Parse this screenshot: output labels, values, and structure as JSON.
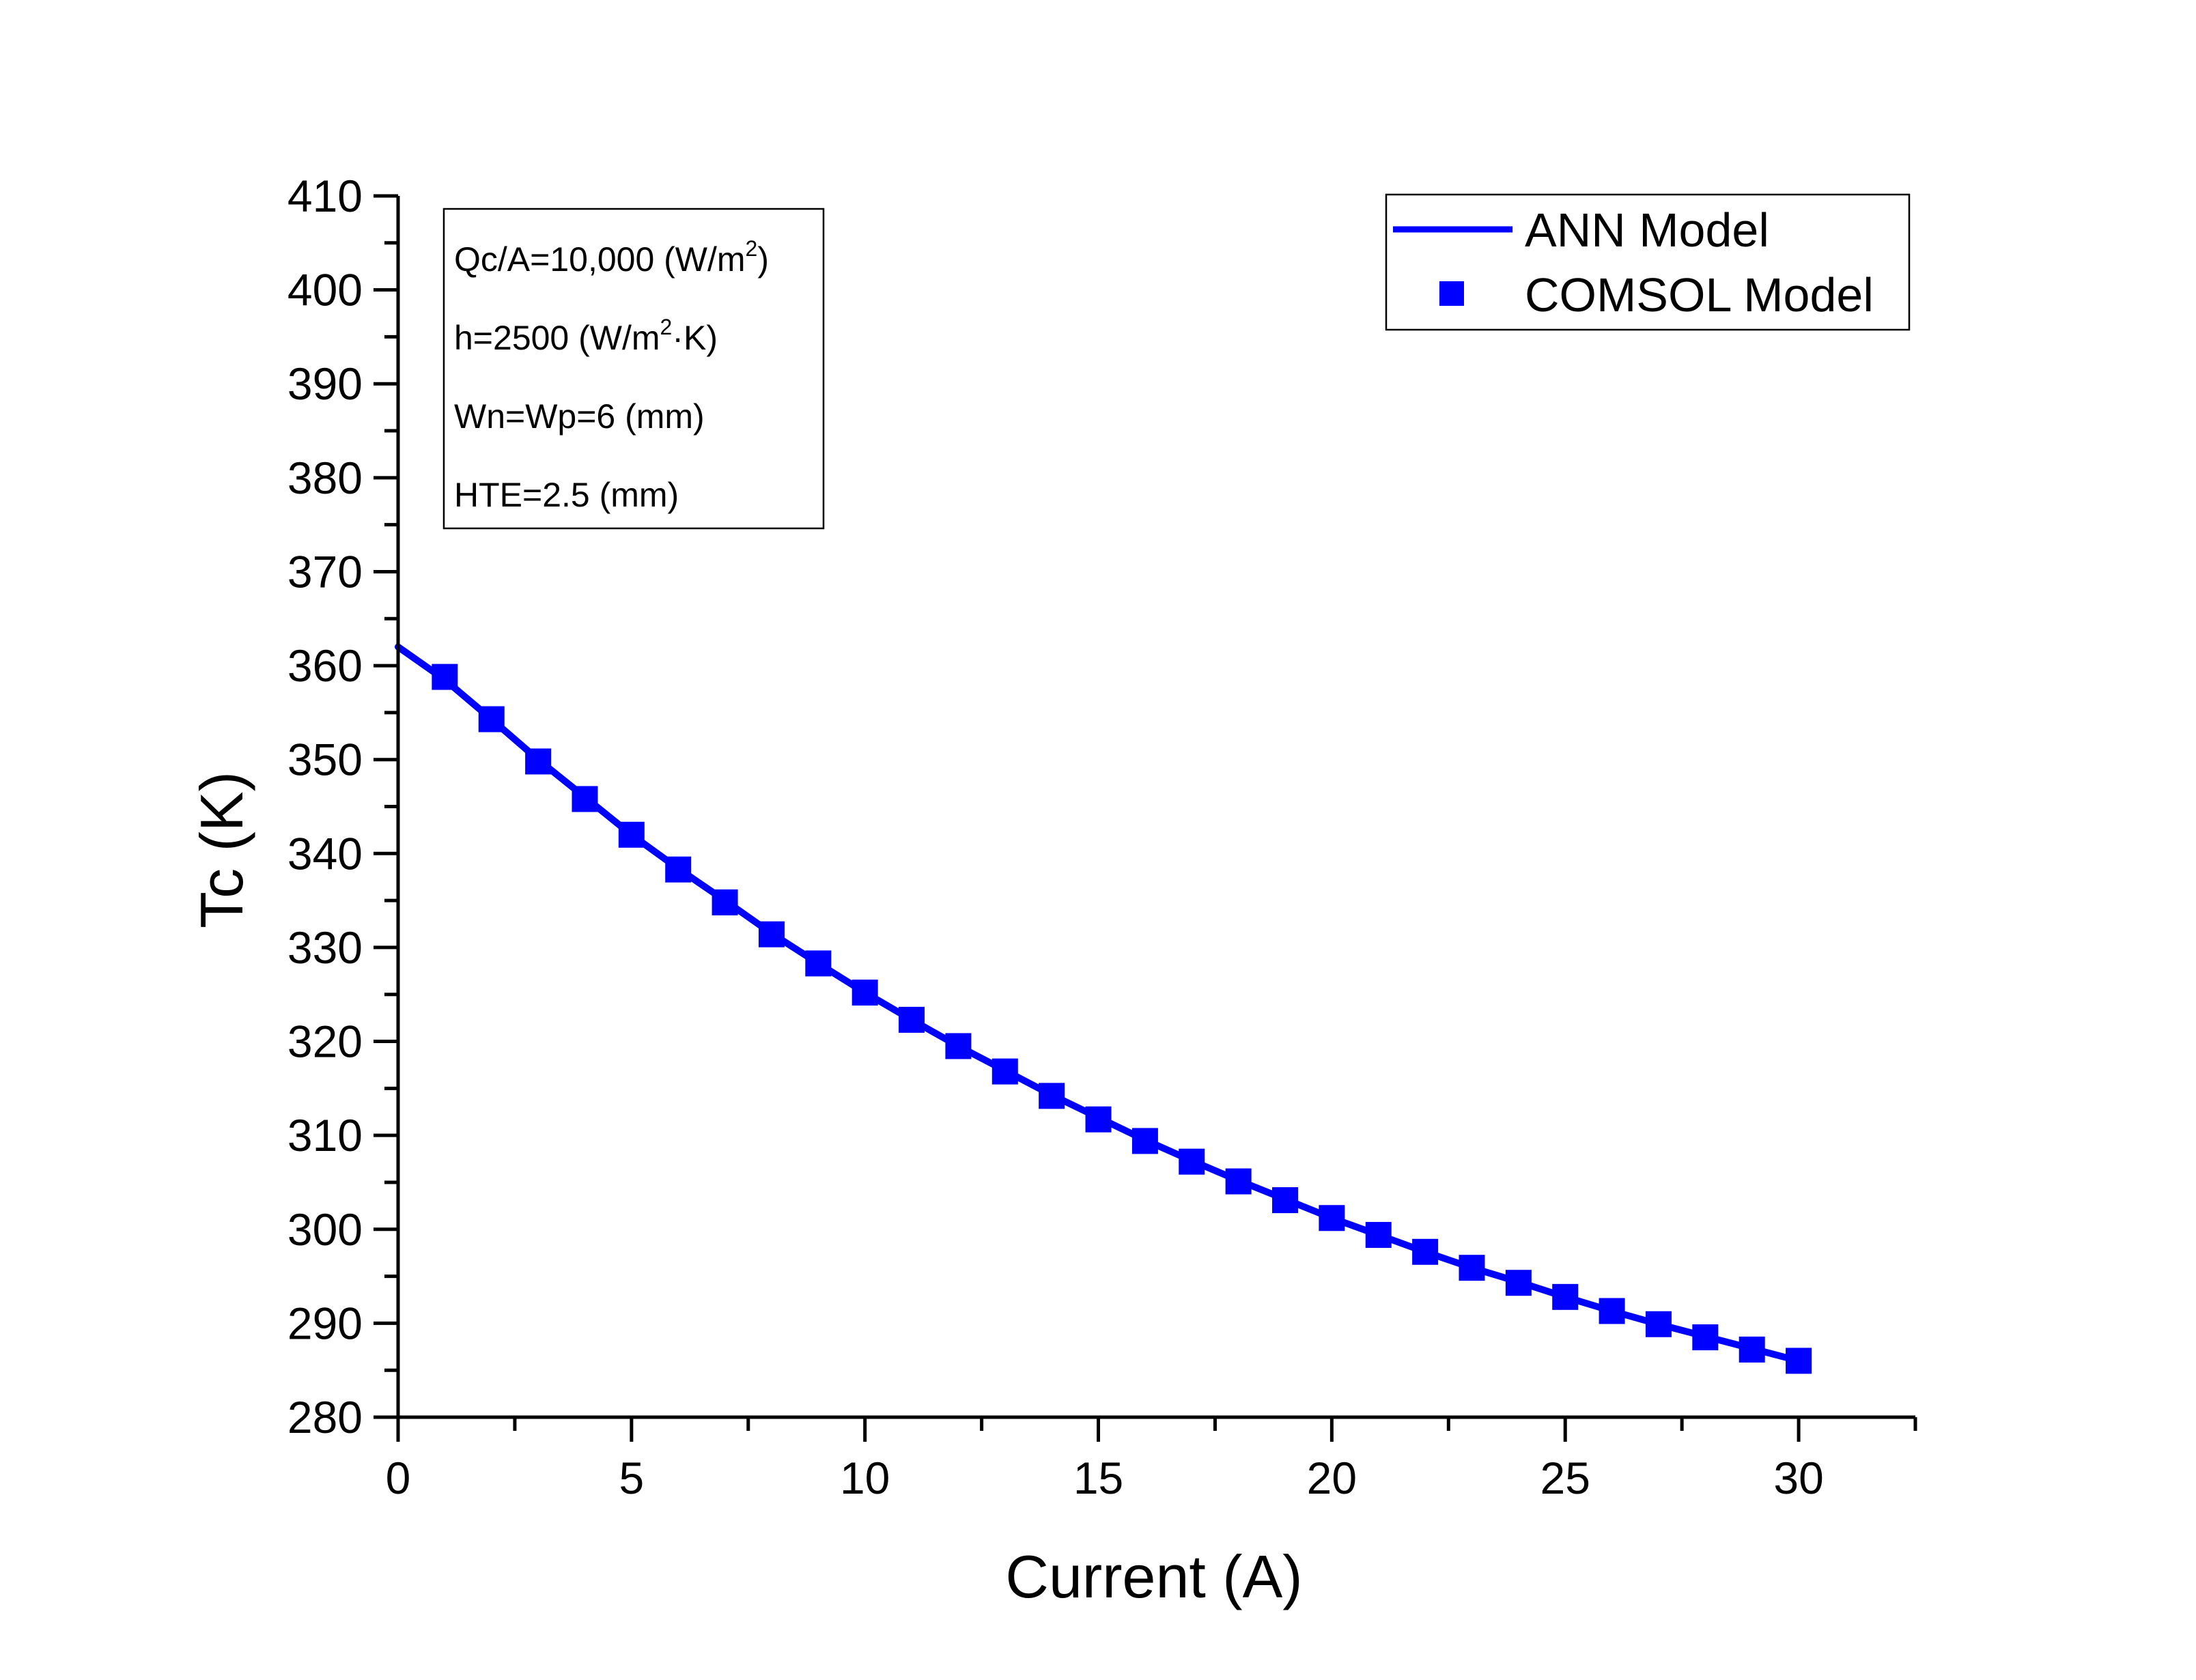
{
  "chart_data": {
    "type": "line",
    "xlabel": "Current (A)",
    "ylabel": "Tc (K)",
    "xlim": [
      0,
      32.5
    ],
    "ylim": [
      280,
      410
    ],
    "x_ticks": [
      0,
      5,
      10,
      15,
      20,
      25,
      30
    ],
    "y_ticks": [
      280,
      290,
      300,
      310,
      320,
      330,
      340,
      350,
      360,
      370,
      380,
      390,
      400,
      410
    ],
    "grid": false,
    "legend_position": "top-right",
    "annotations": [
      {
        "text": "Qc/A=10,000 (W/m",
        "sup": "2",
        "tail": ")"
      },
      {
        "text": "h=2500 (W/m",
        "sup": "2",
        "tail": "·K)"
      },
      {
        "text": "Wn=Wp=6 (mm)",
        "sup": "",
        "tail": ""
      },
      {
        "text": "HTE=2.5 (mm)",
        "sup": "",
        "tail": ""
      }
    ],
    "series": [
      {
        "name": "ANN Model",
        "style": "line",
        "color": "#0000ff",
        "x": [
          0,
          1,
          2,
          3,
          4,
          5,
          6,
          7,
          8,
          9,
          10,
          11,
          12,
          13,
          14,
          15,
          16,
          17,
          18,
          19,
          20,
          21,
          22,
          23,
          24,
          25,
          26,
          27,
          28,
          29,
          30
        ],
        "values": [
          362.0,
          358.5,
          354.3,
          350.0,
          346.0,
          342.0,
          338.4,
          335.0,
          331.5,
          328.3,
          325.2,
          322.3,
          319.5,
          316.9,
          314.3,
          311.9,
          309.5,
          307.3,
          305.2,
          303.2,
          301.2,
          299.4,
          297.6,
          295.9,
          294.4,
          292.8,
          291.3,
          289.9,
          288.6,
          287.3,
          286.0
        ]
      },
      {
        "name": "COMSOL Model",
        "style": "square-markers",
        "color": "#0000ff",
        "x": [
          1,
          2,
          3,
          4,
          5,
          6,
          7,
          8,
          9,
          10,
          11,
          12,
          13,
          14,
          15,
          16,
          17,
          18,
          19,
          20,
          21,
          22,
          23,
          24,
          25,
          26,
          27,
          28,
          29,
          30
        ],
        "values": [
          358.8,
          354.3,
          349.8,
          345.8,
          342.0,
          338.3,
          334.8,
          331.4,
          328.3,
          325.2,
          322.3,
          319.5,
          316.8,
          314.2,
          311.7,
          309.4,
          307.2,
          305.1,
          303.1,
          301.2,
          299.4,
          297.6,
          295.9,
          294.3,
          292.8,
          291.3,
          289.9,
          288.5,
          287.2,
          286.0
        ]
      }
    ]
  }
}
